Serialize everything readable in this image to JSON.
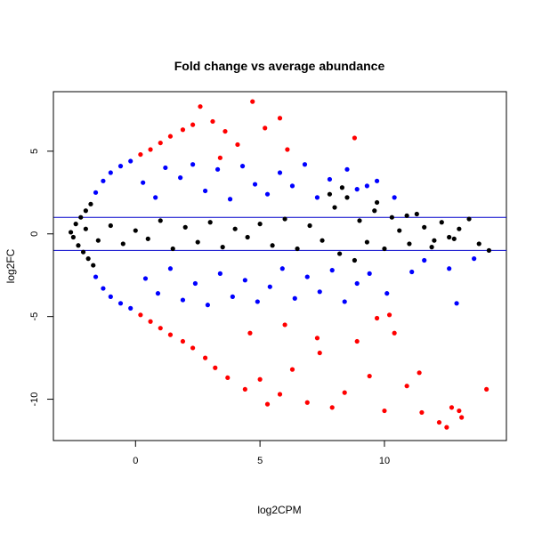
{
  "chart_data": {
    "type": "scatter",
    "title": "Fold change vs average abundance",
    "xlabel": "log2CPM",
    "ylabel": "log2FC",
    "xlim": [
      -3.3,
      14.9
    ],
    "ylim": [
      -12.5,
      8.6
    ],
    "x_ticks": [
      0,
      5,
      10
    ],
    "y_ticks": [
      -10,
      -5,
      0,
      5
    ],
    "x_tick_labels": [
      "0",
      "5",
      "10"
    ],
    "y_tick_labels": [
      "-10",
      "-5",
      "0",
      "5"
    ],
    "hlines": [
      {
        "y": 1,
        "color": "#0000cc"
      },
      {
        "y": -1,
        "color": "#0000cc"
      }
    ],
    "grid": false,
    "legend": "none",
    "colors": {
      "not_significant": "#000000",
      "significant": "#0000ff",
      "significant_large_fc": "#ff0000"
    },
    "point_groups": [
      {
        "color_key": "not_significant",
        "points": [
          [
            -2.6,
            0.1
          ],
          [
            -2.5,
            -0.2
          ],
          [
            -2.4,
            0.6
          ],
          [
            -2.3,
            -0.7
          ],
          [
            -2.2,
            1.0
          ],
          [
            -2.1,
            -1.1
          ],
          [
            -2.0,
            1.4
          ],
          [
            -1.9,
            -1.5
          ],
          [
            -1.8,
            1.8
          ],
          [
            -1.7,
            -1.9
          ],
          [
            -2.0,
            0.3
          ],
          [
            -1.5,
            -0.4
          ],
          [
            -1.0,
            0.5
          ],
          [
            -0.5,
            -0.6
          ],
          [
            0.0,
            0.2
          ],
          [
            0.5,
            -0.3
          ],
          [
            1.0,
            0.8
          ],
          [
            1.5,
            -0.9
          ],
          [
            2.0,
            0.4
          ],
          [
            2.5,
            -0.5
          ],
          [
            3.0,
            0.7
          ],
          [
            3.5,
            -0.8
          ],
          [
            4.0,
            0.3
          ],
          [
            4.5,
            -0.2
          ],
          [
            5.0,
            0.6
          ],
          [
            5.5,
            -0.7
          ],
          [
            6.0,
            0.9
          ],
          [
            6.5,
            -0.9
          ],
          [
            7.0,
            0.5
          ],
          [
            7.5,
            -0.4
          ],
          [
            8.0,
            1.6
          ],
          [
            8.2,
            -1.2
          ],
          [
            8.5,
            2.2
          ],
          [
            8.8,
            -1.6
          ],
          [
            9.0,
            0.8
          ],
          [
            9.3,
            -0.5
          ],
          [
            9.6,
            1.4
          ],
          [
            10.0,
            -0.9
          ],
          [
            10.3,
            1.0
          ],
          [
            10.6,
            0.2
          ],
          [
            11.0,
            -0.6
          ],
          [
            11.3,
            1.2
          ],
          [
            11.6,
            0.4
          ],
          [
            12.0,
            -0.4
          ],
          [
            12.3,
            0.7
          ],
          [
            12.6,
            -0.2
          ],
          [
            13.0,
            0.3
          ],
          [
            13.4,
            0.9
          ],
          [
            13.8,
            -0.6
          ],
          [
            14.2,
            -1.0
          ],
          [
            7.8,
            2.4
          ],
          [
            8.3,
            2.8
          ],
          [
            9.7,
            1.9
          ],
          [
            10.9,
            1.1
          ],
          [
            11.9,
            -0.8
          ],
          [
            12.8,
            -0.3
          ]
        ]
      },
      {
        "color_key": "significant",
        "points": [
          [
            -1.6,
            2.5
          ],
          [
            -1.3,
            3.2
          ],
          [
            -1.0,
            3.7
          ],
          [
            -0.6,
            4.1
          ],
          [
            -0.2,
            4.4
          ],
          [
            -1.6,
            -2.6
          ],
          [
            -1.3,
            -3.3
          ],
          [
            -1.0,
            -3.8
          ],
          [
            -0.6,
            -4.2
          ],
          [
            -0.2,
            -4.5
          ],
          [
            0.3,
            3.1
          ],
          [
            0.8,
            2.2
          ],
          [
            1.2,
            4.0
          ],
          [
            1.8,
            3.4
          ],
          [
            2.3,
            4.2
          ],
          [
            2.8,
            2.6
          ],
          [
            3.3,
            3.9
          ],
          [
            3.8,
            2.1
          ],
          [
            4.3,
            4.1
          ],
          [
            4.8,
            3.0
          ],
          [
            5.3,
            2.4
          ],
          [
            5.8,
            3.7
          ],
          [
            6.3,
            2.9
          ],
          [
            6.8,
            4.2
          ],
          [
            7.3,
            2.2
          ],
          [
            7.8,
            3.3
          ],
          [
            8.5,
            3.9
          ],
          [
            8.9,
            2.7
          ],
          [
            9.3,
            2.9
          ],
          [
            10.4,
            2.2
          ],
          [
            0.4,
            -2.7
          ],
          [
            0.9,
            -3.6
          ],
          [
            1.4,
            -2.1
          ],
          [
            1.9,
            -4.0
          ],
          [
            2.4,
            -3.0
          ],
          [
            2.9,
            -4.3
          ],
          [
            3.4,
            -2.4
          ],
          [
            3.9,
            -3.8
          ],
          [
            4.4,
            -2.8
          ],
          [
            4.9,
            -4.1
          ],
          [
            5.4,
            -3.2
          ],
          [
            5.9,
            -2.1
          ],
          [
            6.4,
            -3.9
          ],
          [
            6.9,
            -2.6
          ],
          [
            7.4,
            -3.5
          ],
          [
            7.9,
            -2.2
          ],
          [
            8.4,
            -4.1
          ],
          [
            8.9,
            -3.0
          ],
          [
            9.4,
            -2.4
          ],
          [
            10.1,
            -3.6
          ],
          [
            11.1,
            -2.3
          ],
          [
            12.9,
            -4.2
          ],
          [
            12.6,
            -2.1
          ],
          [
            11.6,
            -1.6
          ],
          [
            13.6,
            -1.5
          ],
          [
            9.7,
            3.2
          ]
        ]
      },
      {
        "color_key": "significant_large_fc",
        "points": [
          [
            0.2,
            4.8
          ],
          [
            0.6,
            5.1
          ],
          [
            1.0,
            5.5
          ],
          [
            1.4,
            5.9
          ],
          [
            1.9,
            6.3
          ],
          [
            2.3,
            6.6
          ],
          [
            2.6,
            7.7
          ],
          [
            3.1,
            6.8
          ],
          [
            3.6,
            6.2
          ],
          [
            4.1,
            5.4
          ],
          [
            4.7,
            8.0
          ],
          [
            5.2,
            6.4
          ],
          [
            5.8,
            7.0
          ],
          [
            6.1,
            5.1
          ],
          [
            8.8,
            5.8
          ],
          [
            3.4,
            4.6
          ],
          [
            0.2,
            -4.9
          ],
          [
            0.6,
            -5.3
          ],
          [
            1.0,
            -5.7
          ],
          [
            1.4,
            -6.1
          ],
          [
            1.9,
            -6.5
          ],
          [
            2.3,
            -6.9
          ],
          [
            2.8,
            -7.5
          ],
          [
            3.2,
            -8.1
          ],
          [
            3.7,
            -8.7
          ],
          [
            4.4,
            -9.4
          ],
          [
            5.0,
            -8.8
          ],
          [
            5.3,
            -10.3
          ],
          [
            5.8,
            -9.7
          ],
          [
            6.3,
            -8.2
          ],
          [
            6.9,
            -10.2
          ],
          [
            7.4,
            -7.2
          ],
          [
            7.9,
            -10.5
          ],
          [
            8.4,
            -9.6
          ],
          [
            8.9,
            -6.5
          ],
          [
            9.4,
            -8.6
          ],
          [
            10.0,
            -10.7
          ],
          [
            10.4,
            -6.0
          ],
          [
            10.9,
            -9.2
          ],
          [
            11.5,
            -10.8
          ],
          [
            12.2,
            -11.4
          ],
          [
            12.7,
            -10.5
          ],
          [
            13.1,
            -11.1
          ],
          [
            13.0,
            -10.7
          ],
          [
            12.5,
            -11.7
          ],
          [
            14.1,
            -9.4
          ],
          [
            11.4,
            -8.4
          ],
          [
            9.7,
            -5.1
          ],
          [
            7.3,
            -6.3
          ],
          [
            6.0,
            -5.5
          ],
          [
            4.6,
            -6.0
          ],
          [
            10.2,
            -4.9
          ]
        ]
      }
    ]
  }
}
